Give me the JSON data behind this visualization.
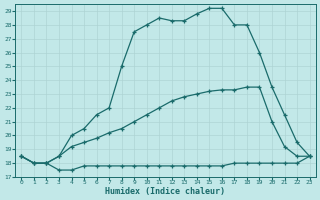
{
  "xlabel": "Humidex (Indice chaleur)",
  "bg_color": "#c2e8e8",
  "line_color": "#1a6b6b",
  "grid_color": "#aed4d4",
  "xlim": [
    -0.5,
    23.5
  ],
  "ylim": [
    17,
    29.5
  ],
  "yticks": [
    17,
    18,
    19,
    20,
    21,
    22,
    23,
    24,
    25,
    26,
    27,
    28,
    29
  ],
  "xticks": [
    0,
    1,
    2,
    3,
    4,
    5,
    6,
    7,
    8,
    9,
    10,
    11,
    12,
    13,
    14,
    15,
    16,
    17,
    18,
    19,
    20,
    21,
    22,
    23
  ],
  "series": [
    {
      "x": [
        0,
        1,
        2,
        3,
        4,
        5,
        6,
        7,
        8,
        9,
        10,
        11,
        12,
        13,
        14,
        15,
        16,
        17,
        18,
        19,
        20,
        21,
        22,
        23
      ],
      "y": [
        18.5,
        18.0,
        18.0,
        17.5,
        17.5,
        17.8,
        17.8,
        17.8,
        17.8,
        17.8,
        17.8,
        17.8,
        17.8,
        17.8,
        17.8,
        17.8,
        17.8,
        18.0,
        18.0,
        18.0,
        18.0,
        18.0,
        18.0,
        18.5
      ]
    },
    {
      "x": [
        0,
        1,
        2,
        3,
        4,
        5,
        6,
        7,
        8,
        9,
        10,
        11,
        12,
        13,
        14,
        15,
        16,
        17,
        18,
        19,
        20,
        21,
        22,
        23
      ],
      "y": [
        18.5,
        18.0,
        18.0,
        18.5,
        19.2,
        19.5,
        19.8,
        20.2,
        20.5,
        21.0,
        21.5,
        22.0,
        22.5,
        22.8,
        23.0,
        23.2,
        23.3,
        23.3,
        23.5,
        23.5,
        21.0,
        19.2,
        18.5,
        18.5
      ]
    },
    {
      "x": [
        0,
        1,
        2,
        3,
        4,
        5,
        6,
        7,
        8,
        9,
        10,
        11,
        12,
        13,
        14,
        15,
        16,
        17,
        18,
        19,
        20,
        21,
        22,
        23
      ],
      "y": [
        18.5,
        18.0,
        18.0,
        18.5,
        20.0,
        20.5,
        21.5,
        22.0,
        25.0,
        27.5,
        28.0,
        28.5,
        28.3,
        28.3,
        28.8,
        29.2,
        29.2,
        28.0,
        28.0,
        26.0,
        23.5,
        21.5,
        19.5,
        18.5
      ]
    }
  ]
}
